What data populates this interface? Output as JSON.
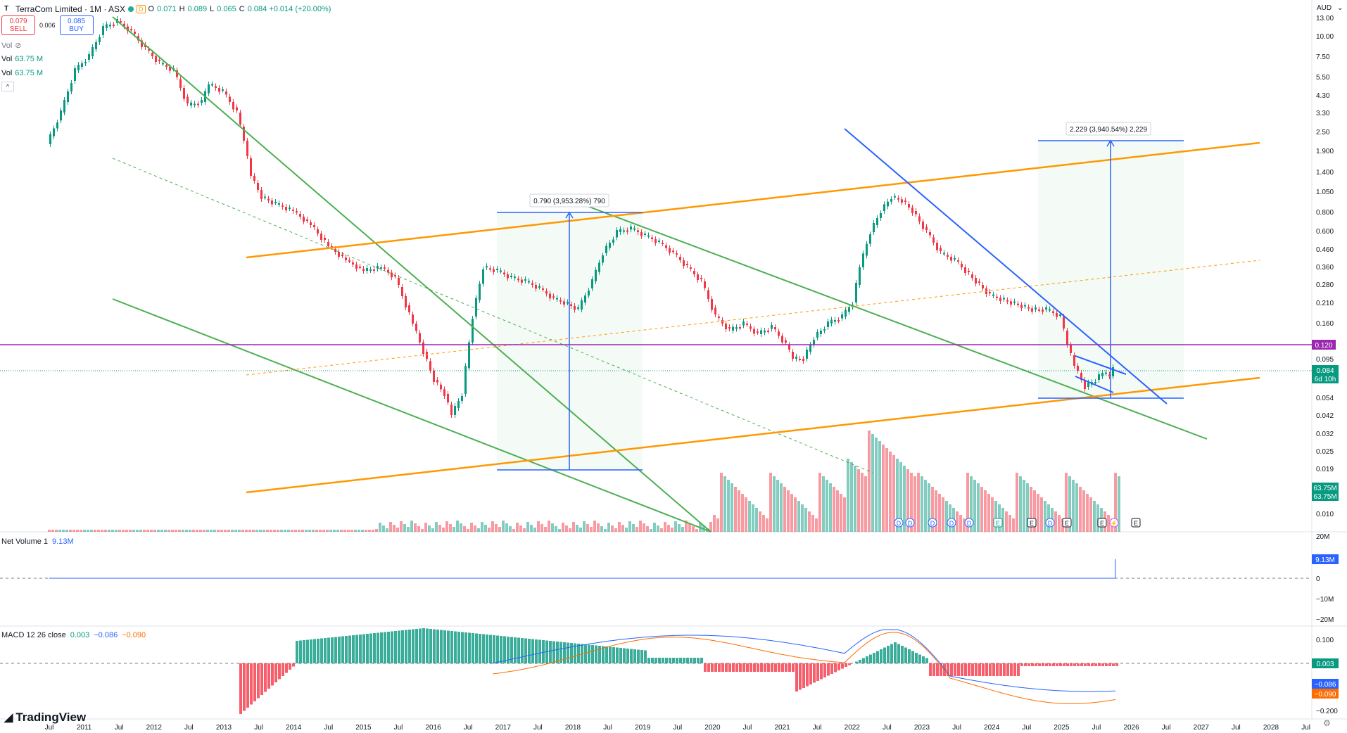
{
  "header": {
    "title": "TerraCom Limited · 1M · ASX",
    "badge": "D",
    "ohlc": [
      {
        "label": "O",
        "value": "0.071"
      },
      {
        "label": "H",
        "value": "0.089"
      },
      {
        "label": "L",
        "value": "0.065"
      },
      {
        "label": "C",
        "value": "0.084 +0.014 (+20.00%)"
      }
    ],
    "sell_price": "0.079",
    "sell_label": "SELL",
    "buy_price": "0.085",
    "buy_label": "BUY",
    "spread": "0.006",
    "vol_rows": [
      {
        "label": "Vol",
        "value": "",
        "icon": "eye-off-icon"
      },
      {
        "label": "Vol",
        "value": "63.75 M"
      },
      {
        "label": "Vol",
        "value": "63.75 M"
      }
    ],
    "collapse_glyph": "^"
  },
  "currency": "AUD",
  "currency_menu": "⌄",
  "price_axis": [
    "13.00",
    "10.00",
    "7.50",
    "5.50",
    "4.30",
    "3.30",
    "2.50",
    "1.900",
    "1.400",
    "1.050",
    "0.800",
    "0.600",
    "0.460",
    "0.360",
    "0.280",
    "0.210",
    "0.160",
    "0.095",
    "0.074",
    "0.054",
    "0.042",
    "0.032",
    "0.025",
    "0.019",
    "0.010"
  ],
  "price_badges": {
    "level": "0.120",
    "last": "0.084",
    "countdown": "6d 10h",
    "vol1": "63.75M",
    "vol2": "63.75M"
  },
  "measure_labels": {
    "first": "0.790 (3,953.28%) 790",
    "second": "2.229 (3,940.54%) 2,229"
  },
  "time_axis": [
    "Jul",
    "2011",
    "Jul",
    "2012",
    "Jul",
    "2013",
    "Jul",
    "2014",
    "Jul",
    "2015",
    "Jul",
    "2016",
    "Jul",
    "2017",
    "Jul",
    "2018",
    "Jul",
    "2019",
    "Jul",
    "2020",
    "Jul",
    "2021",
    "Jul",
    "2022",
    "Jul",
    "2023",
    "Jul",
    "2024",
    "Jul",
    "2025",
    "Jul",
    "2026",
    "Jul",
    "2027",
    "Jul",
    "2028",
    "Jul"
  ],
  "event_markers": [
    "D",
    "D",
    "D",
    "D",
    "D",
    "E",
    "E",
    "D",
    "E",
    "E",
    "⚡",
    "E"
  ],
  "net_volume": {
    "label": "Net Volume 1",
    "value": "9.13M",
    "axis": [
      "20M",
      "0",
      "−10M",
      "−20M"
    ],
    "badge": "9.13M"
  },
  "macd": {
    "label": "MACD 12 26 close",
    "hist": "0.003",
    "macd": "−0.086",
    "signal": "−0.090",
    "axis": [
      "0.100",
      "0",
      "−0.200"
    ],
    "badges": [
      "0.003",
      "−0.086",
      "−0.090"
    ]
  },
  "brand": "TradingView",
  "colors": {
    "up": "#089981",
    "down": "#f23645",
    "orange": "#ff9800",
    "green_line": "#4caf50",
    "blue_line": "#2962ff",
    "level_line": "#9c27b0"
  }
}
